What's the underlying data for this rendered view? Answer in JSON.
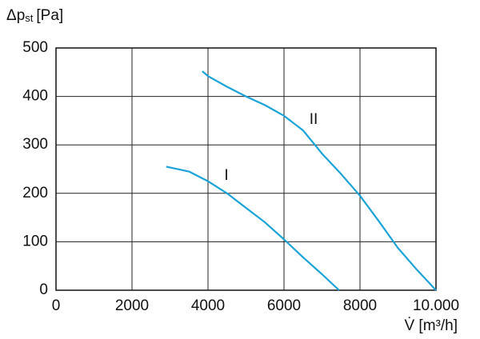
{
  "chart_data": {
    "type": "line",
    "y_label": {
      "symbol": "Δp",
      "subscript": "st",
      "unit": "[Pa]"
    },
    "x_label": "V̇ [m³/h]",
    "series": [
      {
        "name": "I",
        "color": "#1ba3d8",
        "x": [
          2900,
          3500,
          4000,
          4500,
          5000,
          5500,
          6000,
          6500,
          7000,
          7450
        ],
        "values": [
          255,
          245,
          225,
          200,
          170,
          140,
          105,
          68,
          33,
          0
        ]
      },
      {
        "name": "II",
        "color": "#1ba3d8",
        "x": [
          3850,
          4000,
          4500,
          5000,
          5500,
          6000,
          6500,
          7000,
          7500,
          8000,
          8500,
          9000,
          9500,
          10000
        ],
        "values": [
          452,
          442,
          420,
          400,
          382,
          360,
          330,
          282,
          240,
          195,
          142,
          87,
          42,
          0
        ]
      }
    ],
    "xlim": [
      0,
      10000
    ],
    "ylim": [
      0,
      500
    ],
    "xticks": [
      0,
      2000,
      4000,
      6000,
      8000,
      {
        "value": 10000,
        "label": "10.000"
      }
    ],
    "yticks": [
      0,
      100,
      200,
      300,
      400,
      500
    ],
    "grid": true
  }
}
